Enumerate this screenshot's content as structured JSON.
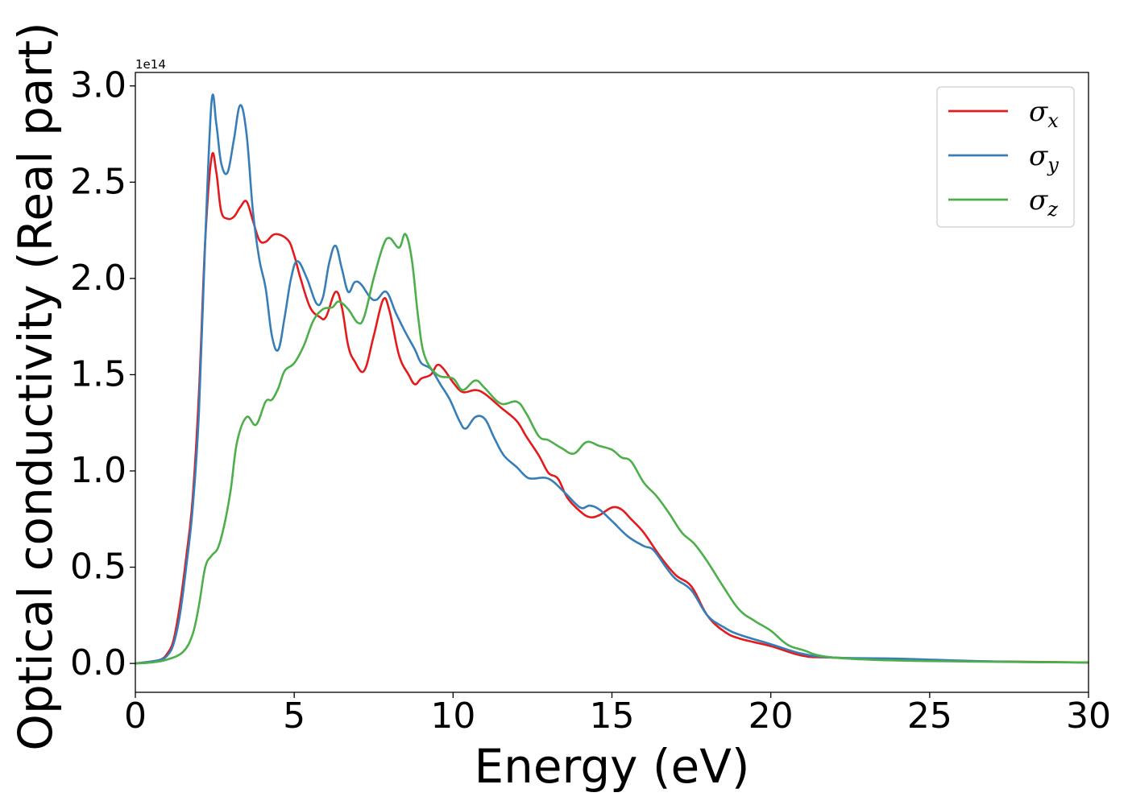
{
  "chart_data": {
    "type": "line",
    "xlabel": "Energy (eV)",
    "ylabel": "Optical conductivity (Real part)",
    "y_offset_label": "1e14",
    "xlim": [
      0,
      30
    ],
    "ylim": [
      -0.15,
      3.07
    ],
    "x_ticks": [
      0,
      5,
      10,
      15,
      20,
      25,
      30
    ],
    "x_tick_labels": [
      "0",
      "5",
      "10",
      "15",
      "20",
      "25",
      "30"
    ],
    "y_ticks": [
      0.0,
      0.5,
      1.0,
      1.5,
      2.0,
      2.5,
      3.0
    ],
    "y_tick_labels": [
      "0.0",
      "0.5",
      "1.0",
      "1.5",
      "2.0",
      "2.5",
      "3.0"
    ],
    "grid": false,
    "legend_position": "top-right",
    "series": [
      {
        "name_symbol": "σ",
        "name_subscript": "x",
        "color": "#e41a1c",
        "points": [
          [
            0,
            0
          ],
          [
            0.5,
            0.01
          ],
          [
            0.8,
            0.02
          ],
          [
            1.0,
            0.05
          ],
          [
            1.2,
            0.12
          ],
          [
            1.4,
            0.3
          ],
          [
            1.6,
            0.55
          ],
          [
            1.8,
            0.85
          ],
          [
            2.0,
            1.4
          ],
          [
            2.2,
            2.2
          ],
          [
            2.4,
            2.63
          ],
          [
            2.55,
            2.55
          ],
          [
            2.7,
            2.35
          ],
          [
            2.9,
            2.31
          ],
          [
            3.1,
            2.32
          ],
          [
            3.3,
            2.37
          ],
          [
            3.5,
            2.4
          ],
          [
            3.7,
            2.3
          ],
          [
            3.9,
            2.2
          ],
          [
            4.1,
            2.19
          ],
          [
            4.4,
            2.23
          ],
          [
            4.8,
            2.2
          ],
          [
            5.0,
            2.12
          ],
          [
            5.2,
            2.0
          ],
          [
            5.5,
            1.85
          ],
          [
            5.8,
            1.8
          ],
          [
            6.0,
            1.8
          ],
          [
            6.3,
            1.93
          ],
          [
            6.5,
            1.85
          ],
          [
            6.7,
            1.65
          ],
          [
            6.9,
            1.57
          ],
          [
            7.2,
            1.52
          ],
          [
            7.5,
            1.7
          ],
          [
            7.8,
            1.89
          ],
          [
            8.0,
            1.83
          ],
          [
            8.3,
            1.6
          ],
          [
            8.6,
            1.5
          ],
          [
            8.8,
            1.45
          ],
          [
            9.0,
            1.48
          ],
          [
            9.3,
            1.5
          ],
          [
            9.5,
            1.55
          ],
          [
            9.7,
            1.53
          ],
          [
            10.0,
            1.46
          ],
          [
            10.3,
            1.41
          ],
          [
            10.7,
            1.42
          ],
          [
            11.0,
            1.4
          ],
          [
            11.5,
            1.33
          ],
          [
            12.0,
            1.26
          ],
          [
            12.3,
            1.18
          ],
          [
            12.7,
            1.08
          ],
          [
            13.0,
            0.99
          ],
          [
            13.3,
            0.96
          ],
          [
            13.6,
            0.86
          ],
          [
            14.0,
            0.79
          ],
          [
            14.3,
            0.76
          ],
          [
            14.6,
            0.77
          ],
          [
            15.0,
            0.81
          ],
          [
            15.3,
            0.8
          ],
          [
            15.6,
            0.75
          ],
          [
            16.0,
            0.68
          ],
          [
            16.5,
            0.56
          ],
          [
            17.0,
            0.46
          ],
          [
            17.5,
            0.4
          ],
          [
            18.0,
            0.25
          ],
          [
            18.5,
            0.17
          ],
          [
            19.0,
            0.13
          ],
          [
            20.0,
            0.09
          ],
          [
            21.0,
            0.04
          ],
          [
            22.0,
            0.03
          ],
          [
            25.0,
            0.015
          ],
          [
            30.0,
            0.005
          ]
        ]
      },
      {
        "name_symbol": "σ",
        "name_subscript": "y",
        "color": "#377eb8",
        "points": [
          [
            0,
            0
          ],
          [
            0.5,
            0.01
          ],
          [
            0.8,
            0.02
          ],
          [
            1.0,
            0.04
          ],
          [
            1.2,
            0.1
          ],
          [
            1.4,
            0.25
          ],
          [
            1.6,
            0.5
          ],
          [
            1.8,
            0.8
          ],
          [
            2.0,
            1.3
          ],
          [
            2.2,
            2.2
          ],
          [
            2.4,
            2.92
          ],
          [
            2.55,
            2.8
          ],
          [
            2.7,
            2.6
          ],
          [
            2.9,
            2.55
          ],
          [
            3.1,
            2.72
          ],
          [
            3.3,
            2.9
          ],
          [
            3.5,
            2.75
          ],
          [
            3.7,
            2.35
          ],
          [
            3.9,
            2.1
          ],
          [
            4.1,
            1.95
          ],
          [
            4.3,
            1.7
          ],
          [
            4.5,
            1.63
          ],
          [
            4.7,
            1.8
          ],
          [
            4.9,
            2.0
          ],
          [
            5.1,
            2.09
          ],
          [
            5.4,
            2.0
          ],
          [
            5.7,
            1.87
          ],
          [
            5.9,
            1.9
          ],
          [
            6.1,
            2.08
          ],
          [
            6.3,
            2.17
          ],
          [
            6.5,
            2.05
          ],
          [
            6.7,
            1.93
          ],
          [
            6.9,
            1.98
          ],
          [
            7.1,
            1.97
          ],
          [
            7.4,
            1.9
          ],
          [
            7.6,
            1.89
          ],
          [
            7.9,
            1.93
          ],
          [
            8.2,
            1.82
          ],
          [
            8.5,
            1.72
          ],
          [
            8.8,
            1.63
          ],
          [
            9.0,
            1.56
          ],
          [
            9.3,
            1.53
          ],
          [
            9.6,
            1.45
          ],
          [
            9.9,
            1.37
          ],
          [
            10.2,
            1.26
          ],
          [
            10.4,
            1.22
          ],
          [
            10.7,
            1.28
          ],
          [
            11.0,
            1.27
          ],
          [
            11.3,
            1.17
          ],
          [
            11.6,
            1.08
          ],
          [
            12.0,
            1.02
          ],
          [
            12.3,
            0.97
          ],
          [
            12.5,
            0.96
          ],
          [
            13.0,
            0.96
          ],
          [
            13.5,
            0.89
          ],
          [
            14.0,
            0.81
          ],
          [
            14.3,
            0.82
          ],
          [
            14.6,
            0.8
          ],
          [
            15.0,
            0.74
          ],
          [
            15.5,
            0.66
          ],
          [
            16.0,
            0.61
          ],
          [
            16.3,
            0.59
          ],
          [
            16.7,
            0.5
          ],
          [
            17.0,
            0.44
          ],
          [
            17.5,
            0.38
          ],
          [
            18.0,
            0.25
          ],
          [
            18.5,
            0.19
          ],
          [
            19.0,
            0.15
          ],
          [
            20.0,
            0.1
          ],
          [
            21.0,
            0.05
          ],
          [
            22.0,
            0.03
          ],
          [
            24.0,
            0.025
          ],
          [
            27.0,
            0.01
          ],
          [
            30.0,
            0.005
          ]
        ]
      },
      {
        "name_symbol": "σ",
        "name_subscript": "z",
        "color": "#4daf4a",
        "points": [
          [
            0,
            0
          ],
          [
            0.5,
            0.005
          ],
          [
            1.0,
            0.02
          ],
          [
            1.5,
            0.06
          ],
          [
            1.8,
            0.15
          ],
          [
            2.0,
            0.3
          ],
          [
            2.2,
            0.5
          ],
          [
            2.4,
            0.56
          ],
          [
            2.6,
            0.6
          ],
          [
            2.8,
            0.72
          ],
          [
            3.0,
            0.9
          ],
          [
            3.2,
            1.15
          ],
          [
            3.5,
            1.28
          ],
          [
            3.8,
            1.24
          ],
          [
            4.1,
            1.36
          ],
          [
            4.3,
            1.37
          ],
          [
            4.5,
            1.43
          ],
          [
            4.7,
            1.52
          ],
          [
            5.0,
            1.56
          ],
          [
            5.3,
            1.65
          ],
          [
            5.6,
            1.78
          ],
          [
            5.9,
            1.84
          ],
          [
            6.2,
            1.85
          ],
          [
            6.4,
            1.88
          ],
          [
            6.7,
            1.84
          ],
          [
            7.0,
            1.77
          ],
          [
            7.2,
            1.8
          ],
          [
            7.5,
            2.0
          ],
          [
            7.8,
            2.17
          ],
          [
            8.0,
            2.21
          ],
          [
            8.3,
            2.16
          ],
          [
            8.5,
            2.23
          ],
          [
            8.7,
            2.1
          ],
          [
            8.9,
            1.8
          ],
          [
            9.1,
            1.6
          ],
          [
            9.5,
            1.5
          ],
          [
            10.0,
            1.48
          ],
          [
            10.3,
            1.42
          ],
          [
            10.7,
            1.47
          ],
          [
            11.0,
            1.43
          ],
          [
            11.5,
            1.35
          ],
          [
            12.0,
            1.36
          ],
          [
            12.3,
            1.3
          ],
          [
            12.7,
            1.18
          ],
          [
            13.0,
            1.16
          ],
          [
            13.4,
            1.12
          ],
          [
            13.8,
            1.09
          ],
          [
            14.2,
            1.15
          ],
          [
            14.6,
            1.13
          ],
          [
            15.0,
            1.11
          ],
          [
            15.3,
            1.07
          ],
          [
            15.6,
            1.05
          ],
          [
            16.0,
            0.94
          ],
          [
            16.4,
            0.87
          ],
          [
            16.8,
            0.78
          ],
          [
            17.2,
            0.68
          ],
          [
            17.6,
            0.62
          ],
          [
            18.0,
            0.53
          ],
          [
            18.5,
            0.4
          ],
          [
            19.0,
            0.28
          ],
          [
            19.5,
            0.22
          ],
          [
            20.0,
            0.17
          ],
          [
            20.5,
            0.1
          ],
          [
            21.0,
            0.07
          ],
          [
            22.0,
            0.03
          ],
          [
            25.0,
            0.012
          ],
          [
            30.0,
            0.005
          ]
        ]
      }
    ]
  }
}
